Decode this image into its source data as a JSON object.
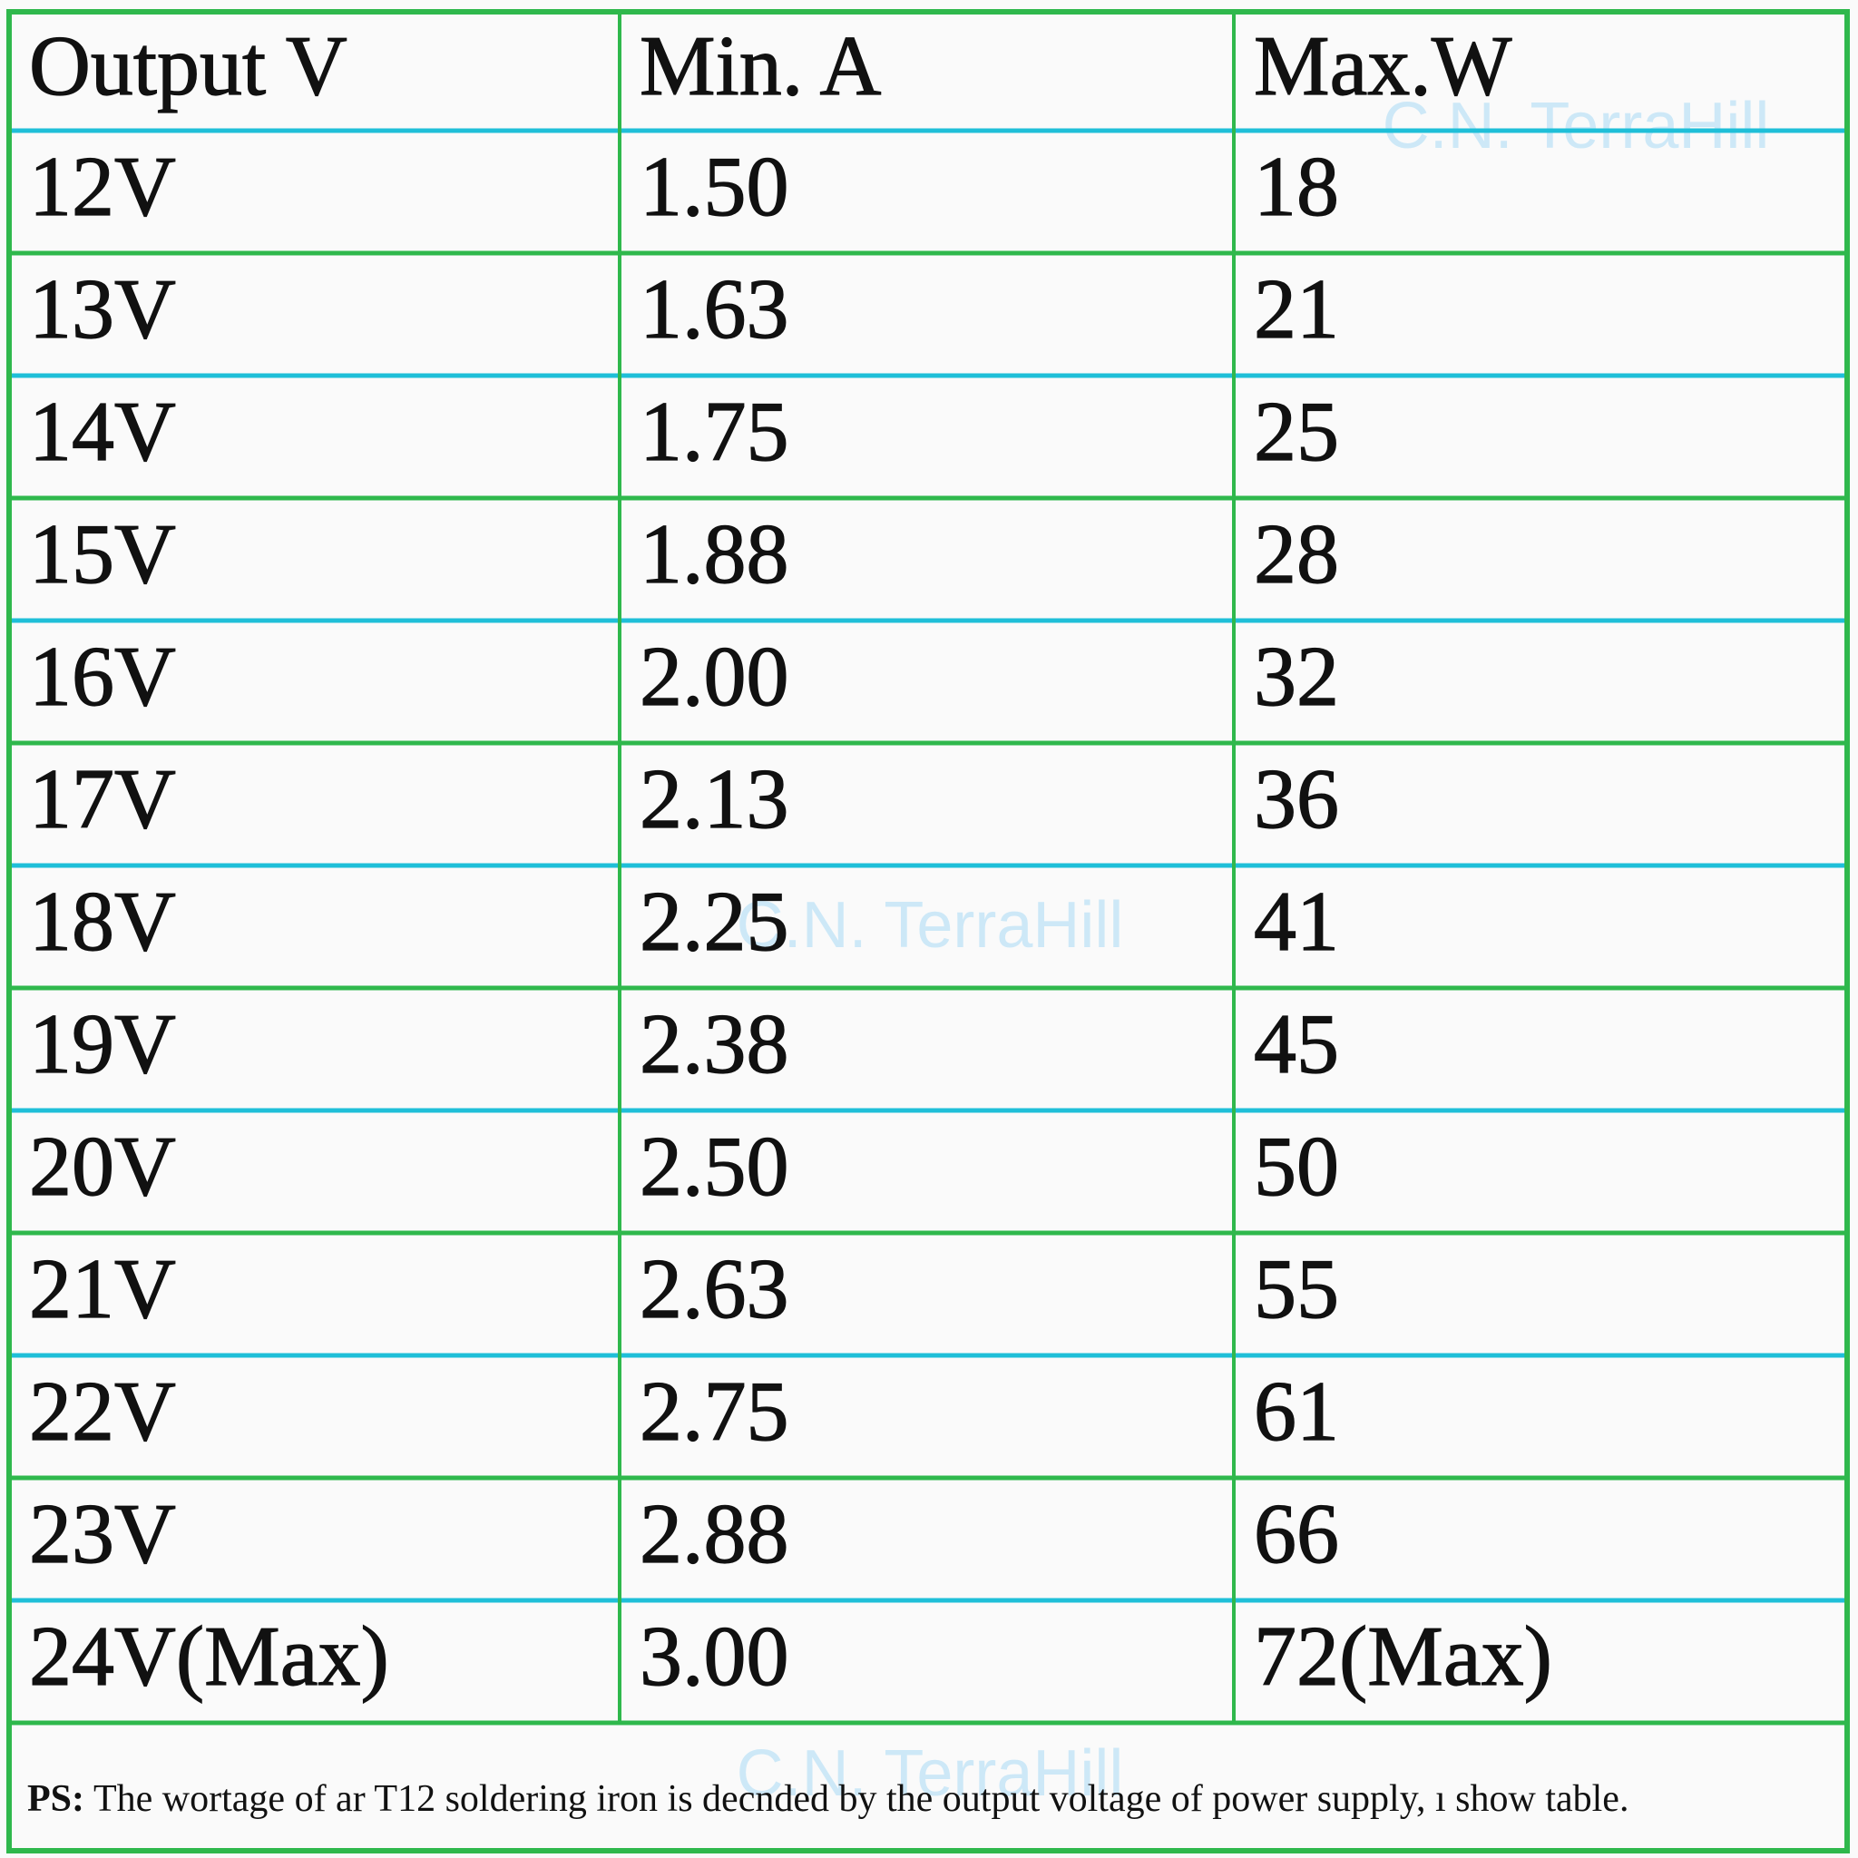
{
  "table": {
    "header": [
      "Output V",
      "Min. A",
      "Max.W"
    ],
    "rows": [
      [
        "12V",
        "1.50",
        "18"
      ],
      [
        "13V",
        "1.63",
        "21"
      ],
      [
        "14V",
        "1.75",
        "25"
      ],
      [
        "15V",
        "1.88",
        "28"
      ],
      [
        "16V",
        "2.00",
        "32"
      ],
      [
        "17V",
        "2.13",
        "36"
      ],
      [
        "18V",
        "2.25",
        "41"
      ],
      [
        "19V",
        "2.38",
        "45"
      ],
      [
        "20V",
        "2.50",
        "50"
      ],
      [
        "21V",
        "2.63",
        "55"
      ],
      [
        "22V",
        "2.75",
        "61"
      ],
      [
        "23V",
        "2.88",
        "66"
      ],
      [
        "24V(Max)",
        "3.00",
        "72(Max)"
      ]
    ]
  },
  "footnote": {
    "label": "PS:",
    "text": "The wortage of ar T12 soldering iron is decnded by the output voltage of power supply, ı show table."
  },
  "watermarks": [
    "C.N. TerraHill",
    "C.N. TerraHill",
    "C.N. TerraHill"
  ]
}
